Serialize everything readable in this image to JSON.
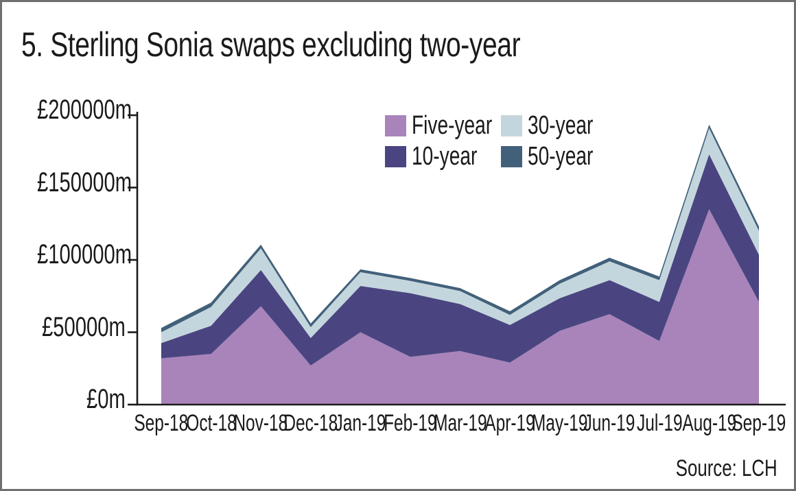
{
  "title": "5. Sterling Sonia swaps excluding two-year",
  "source": "Source: LCH",
  "colors": {
    "axis": "#1a1a1a",
    "text": "#1a1a1a",
    "border": "#6f6f6f",
    "background": "#ffffff"
  },
  "chart_data": {
    "type": "area",
    "stacked": true,
    "title": "5. Sterling Sonia swaps excluding two-year",
    "unit": "£m",
    "x": [
      "Sep-18",
      "Oct-18",
      "Nov-18",
      "Dec-18",
      "Jan-19",
      "Feb-19",
      "Mar-19",
      "Apr-19",
      "May-19",
      "Jun-19",
      "Jul-19",
      "Aug-19",
      "Sep-19"
    ],
    "ylim": [
      0,
      200000
    ],
    "yticks": [
      {
        "value": 0,
        "label": "£0m"
      },
      {
        "value": 50000,
        "label": "£50000m"
      },
      {
        "value": 100000,
        "label": "£100000m"
      },
      {
        "value": 150000,
        "label": "£150000m"
      },
      {
        "value": 200000,
        "label": "£200000m"
      }
    ],
    "grid": false,
    "legend_position": "top-center",
    "legend_columns": 2,
    "legend_order": [
      "Five-year",
      "30-year",
      "10-year",
      "50-year"
    ],
    "series": [
      {
        "name": "Five-year",
        "color": "#a884ba",
        "values": [
          32000,
          35000,
          68000,
          27000,
          50000,
          33000,
          37000,
          29000,
          51000,
          62500,
          44000,
          135000,
          71000
        ]
      },
      {
        "name": "10-year",
        "color": "#4a4580",
        "values": [
          10500,
          19500,
          25000,
          19000,
          32000,
          44000,
          32500,
          26000,
          22500,
          23500,
          27000,
          38000,
          32500
        ]
      },
      {
        "name": "30-year",
        "color": "#c4d6dd",
        "values": [
          7500,
          13000,
          15000,
          7500,
          9500,
          8500,
          9000,
          7000,
          10000,
          13000,
          15000,
          18000,
          16500
        ]
      },
      {
        "name": "50-year",
        "color": "#42607a",
        "values": [
          3000,
          3000,
          2500,
          2500,
          2000,
          2000,
          2000,
          2500,
          2500,
          2500,
          2500,
          2500,
          3000
        ]
      }
    ],
    "source": "Source: LCH"
  }
}
